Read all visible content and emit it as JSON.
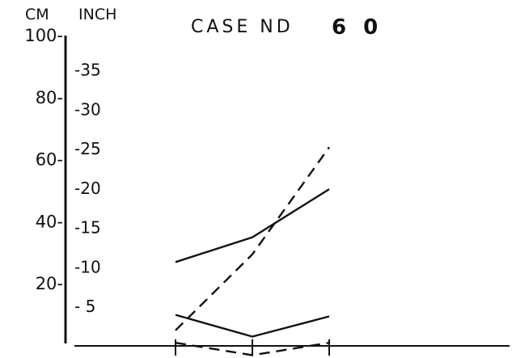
{
  "chart_data": {
    "type": "line",
    "title": "CASE ND",
    "case_number": "6 0",
    "y_label_cm": "CM",
    "y_label_inch": "INCH",
    "ylim_cm": [
      0,
      100
    ],
    "ylim_inch": [
      0,
      39.37
    ],
    "cm_ticks": [
      {
        "value": 20,
        "label": "20-"
      },
      {
        "value": 40,
        "label": "40-"
      },
      {
        "value": 60,
        "label": "60-"
      },
      {
        "value": 80,
        "label": "80-"
      },
      {
        "value": 100,
        "label": "100-"
      }
    ],
    "inch_ticks": [
      {
        "value": 5,
        "label": "- 5"
      },
      {
        "value": 10,
        "label": "-10"
      },
      {
        "value": 15,
        "label": "-15"
      },
      {
        "value": 20,
        "label": "-20"
      },
      {
        "value": 25,
        "label": "-25"
      },
      {
        "value": 30,
        "label": "-30"
      },
      {
        "value": 35,
        "label": "-35"
      }
    ],
    "x_points": [
      1,
      2,
      3
    ],
    "series": [
      {
        "style": "solid",
        "values": [
          27,
          35,
          50.5
        ]
      },
      {
        "style": "dashed",
        "values": [
          5,
          29.5,
          64
        ]
      },
      {
        "style": "solid",
        "values": [
          10,
          3,
          9.5
        ]
      },
      {
        "style": "dashed",
        "values": [
          1,
          -3,
          1
        ]
      }
    ]
  }
}
